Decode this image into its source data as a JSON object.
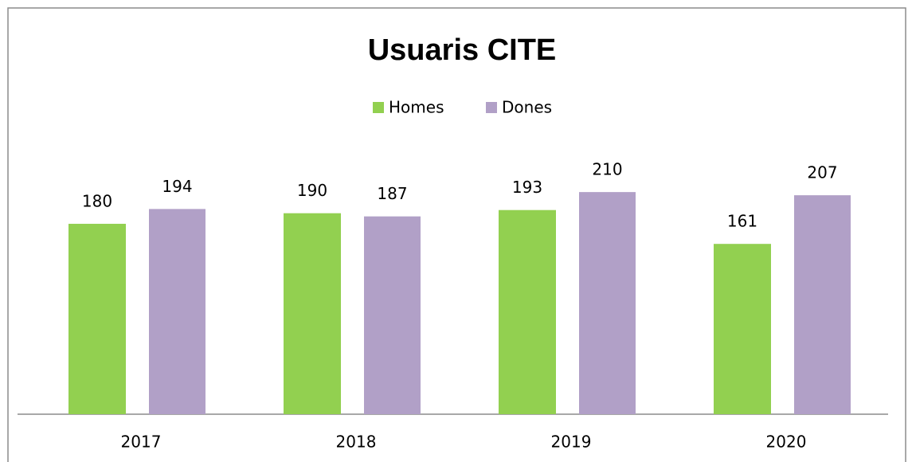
{
  "chart_data": {
    "type": "bar",
    "title": "Usuaris CITE",
    "categories": [
      "2017",
      "2018",
      "2019",
      "2020"
    ],
    "series": [
      {
        "name": "Homes",
        "color": "#92d050",
        "values": [
          180,
          190,
          193,
          161
        ]
      },
      {
        "name": "Dones",
        "color": "#b1a0c7",
        "values": [
          194,
          187,
          210,
          207
        ]
      }
    ],
    "ylim": [
      0,
      250
    ],
    "legend": "top"
  }
}
